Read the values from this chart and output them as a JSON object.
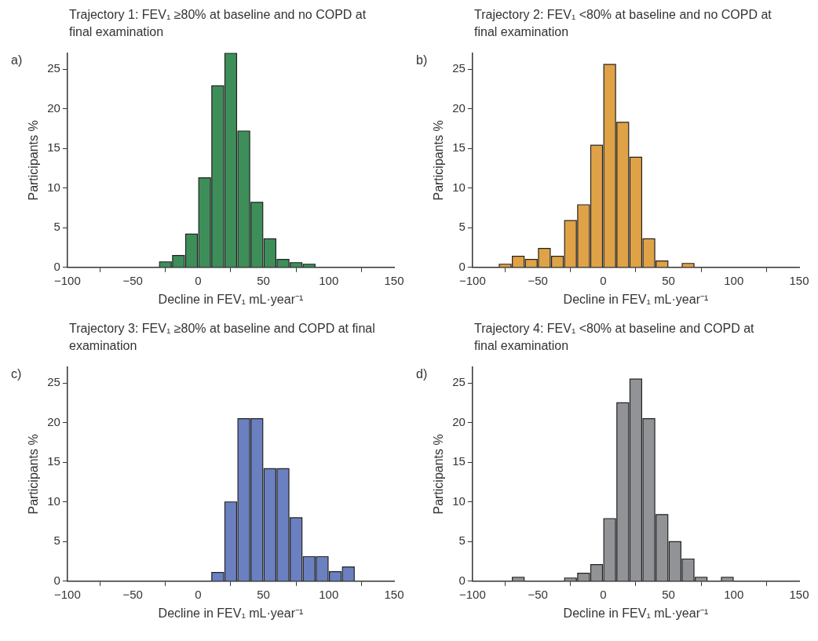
{
  "chart_data": [
    {
      "type": "histogram",
      "title": "Trajectory 1: FEV₁ ≥80% at baseline and no COPD at final examination",
      "xlabel": "Decline in FEV₁ mL·year⁻¹",
      "ylabel": "Participants %",
      "annotations": [
        "a)"
      ],
      "color": "#3e8e5a",
      "bins": [
        -30,
        -20,
        -10,
        0,
        10,
        20,
        30,
        40,
        50,
        60,
        70,
        80,
        90
      ],
      "values": [
        0.7,
        1.5,
        4.2,
        11.3,
        22.9,
        27,
        17.2,
        8.2,
        3.6,
        1.0,
        0.6,
        0.4
      ],
      "xlim": [
        -100,
        150
      ],
      "xticks": [
        -100,
        -50,
        0,
        50,
        100,
        150
      ],
      "ylim": [
        0,
        27
      ],
      "yticks": [
        0,
        5,
        10,
        15,
        20,
        25
      ],
      "grid": false,
      "legend": false
    },
    {
      "type": "histogram",
      "title": "Trajectory 2: FEV₁ <80% at baseline and no COPD at final examination",
      "xlabel": "Decline in FEV₁ mL·year⁻¹",
      "ylabel": "Participants %",
      "annotations": [
        "b)"
      ],
      "color": "#e0a246",
      "bins": [
        -80,
        -70,
        -60,
        -50,
        -40,
        -30,
        -20,
        -10,
        0,
        10,
        20,
        30,
        40,
        50,
        60,
        70
      ],
      "values": [
        0.4,
        1.4,
        1.0,
        2.4,
        1.4,
        5.9,
        7.9,
        15.4,
        25.6,
        18.3,
        13.9,
        3.6,
        0.8,
        0,
        0.5
      ],
      "xlim": [
        -100,
        150
      ],
      "xticks": [
        -100,
        -50,
        0,
        50,
        100,
        150
      ],
      "ylim": [
        0,
        27
      ],
      "yticks": [
        0,
        5,
        10,
        15,
        20,
        25
      ],
      "grid": false,
      "legend": false
    },
    {
      "type": "histogram",
      "title": "Trajectory 3: FEV₁ ≥80% at baseline and COPD at final examination",
      "xlabel": "Decline in FEV₁ mL·year⁻¹",
      "ylabel": "Participants %",
      "annotations": [
        "c)"
      ],
      "color": "#6b80c0",
      "bins": [
        10,
        20,
        30,
        40,
        50,
        60,
        70,
        80,
        90,
        100,
        110,
        120
      ],
      "values": [
        1.1,
        10,
        20.5,
        20.5,
        14.2,
        14.2,
        8,
        3.1,
        3.1,
        1.2,
        1.8
      ],
      "xlim": [
        -100,
        150
      ],
      "xticks": [
        -100,
        -50,
        0,
        50,
        100,
        150
      ],
      "ylim": [
        0,
        27
      ],
      "yticks": [
        0,
        5,
        10,
        15,
        20,
        25
      ],
      "grid": false,
      "legend": false
    },
    {
      "type": "histogram",
      "title": "Trajectory 4: FEV₁ <80% at baseline and COPD at final examination",
      "xlabel": "Decline in FEV₁ mL·year⁻¹",
      "ylabel": "Participants %",
      "annotations": [
        "d)"
      ],
      "color": "#929396",
      "bins": [
        -70,
        -60,
        -50,
        -40,
        -30,
        -20,
        -10,
        0,
        10,
        20,
        30,
        40,
        50,
        60,
        70,
        80,
        90,
        100
      ],
      "values": [
        0.5,
        0,
        0,
        0,
        0.4,
        1.0,
        2.1,
        7.9,
        22.5,
        25.5,
        20.5,
        8.4,
        5.0,
        2.8,
        0.5,
        0,
        0.5
      ],
      "xlim": [
        -100,
        150
      ],
      "xticks": [
        -100,
        -50,
        0,
        50,
        100,
        150
      ],
      "ylim": [
        0,
        27
      ],
      "yticks": [
        0,
        5,
        10,
        15,
        20,
        25
      ],
      "grid": false,
      "legend": false
    }
  ]
}
